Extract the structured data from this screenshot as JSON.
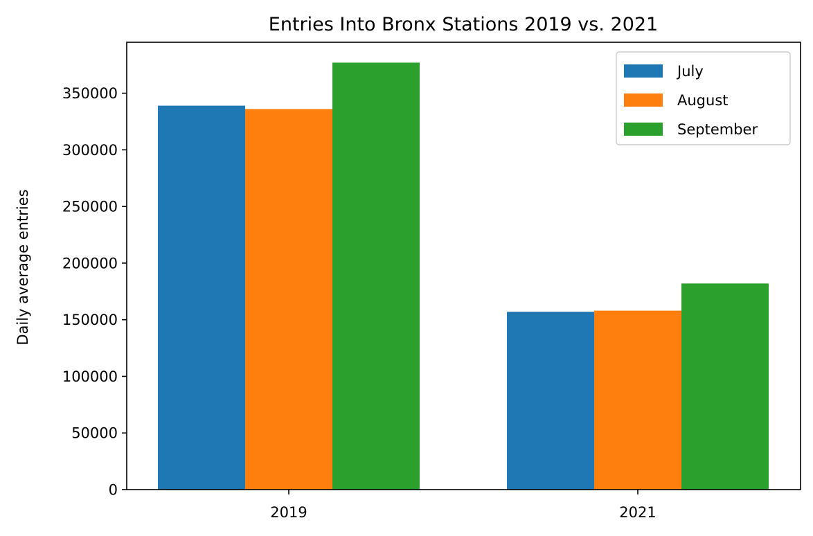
{
  "chart_data": {
    "type": "bar",
    "title": "Entries Into Bronx Stations 2019 vs. 2021",
    "xlabel": "",
    "ylabel": "Daily average entries",
    "categories": [
      "2019",
      "2021"
    ],
    "series": [
      {
        "name": "July",
        "color": "#1f77b4",
        "values": [
          339000,
          157000
        ]
      },
      {
        "name": "August",
        "color": "#ff7f0e",
        "values": [
          336000,
          158000
        ]
      },
      {
        "name": "September",
        "color": "#2ca02c",
        "values": [
          377000,
          182000
        ]
      }
    ],
    "ylim": [
      0,
      395000
    ],
    "yticks": [
      0,
      50000,
      100000,
      150000,
      200000,
      250000,
      300000,
      350000
    ],
    "ytick_labels": [
      "0",
      "50000",
      "100000",
      "150000",
      "200000",
      "250000",
      "300000",
      "350000"
    ],
    "legend_position": "top-right",
    "grid": false
  }
}
